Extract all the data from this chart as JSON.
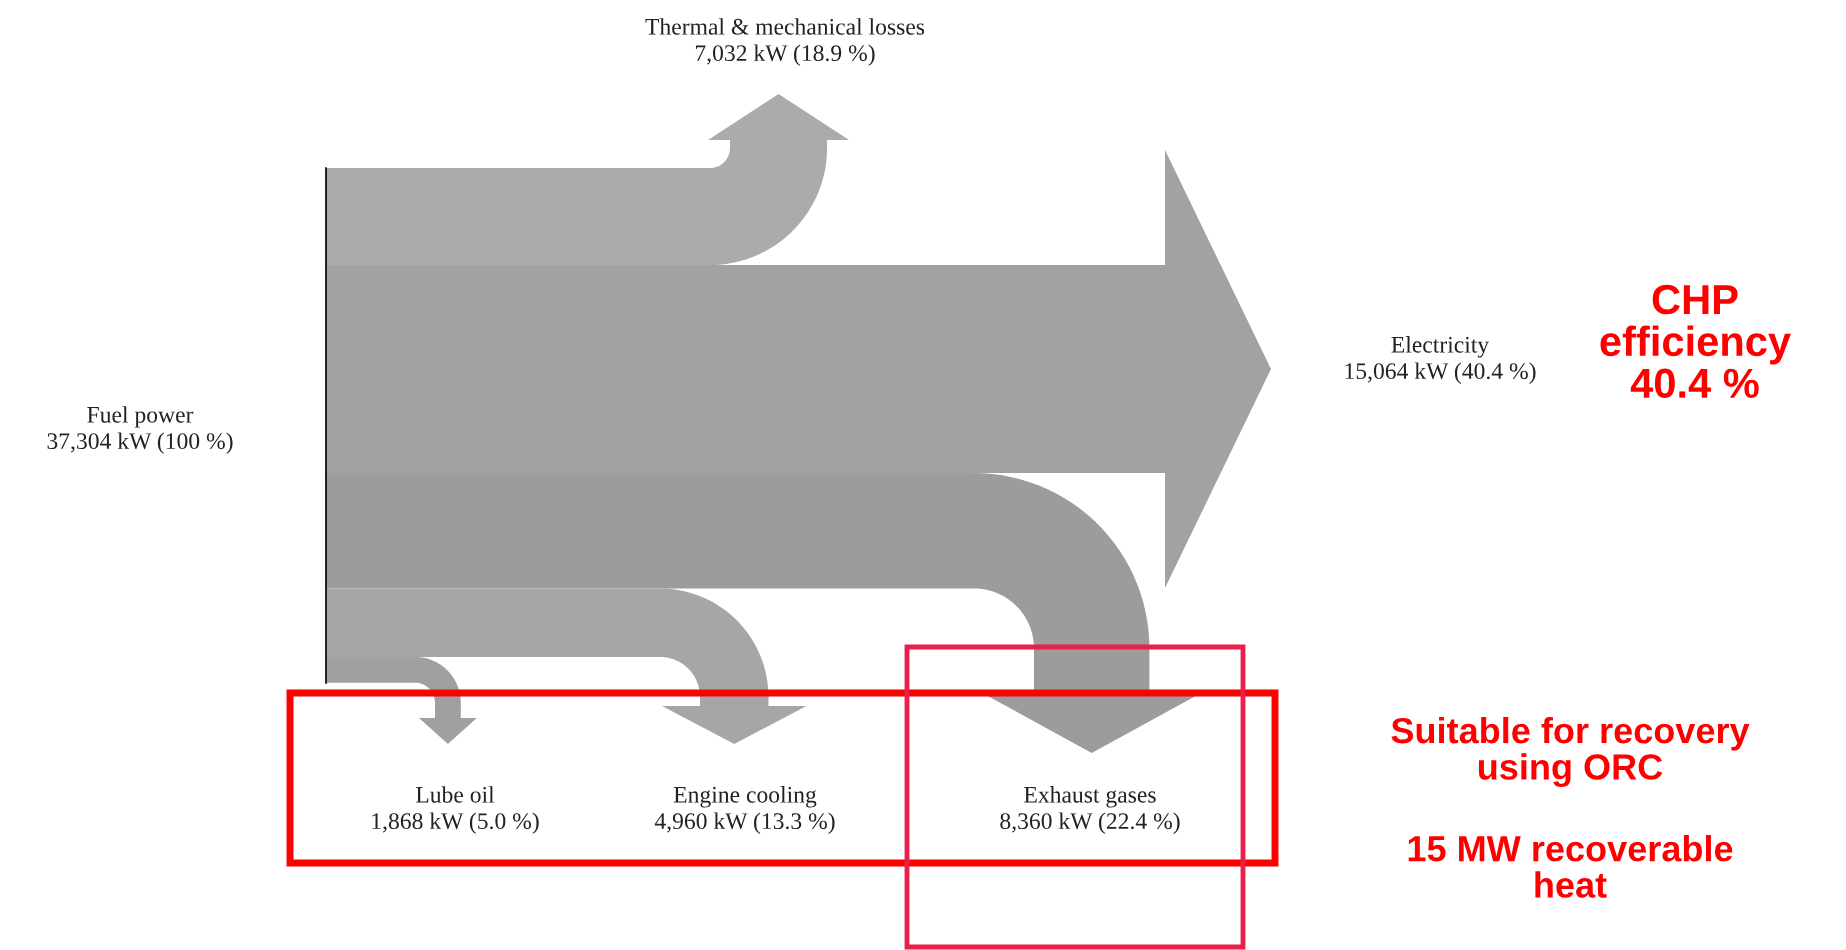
{
  "chart_data": {
    "type": "other",
    "categories": [
      "Fuel power",
      "Thermal & mechanical losses",
      "Electricity",
      "Exhaust gases",
      "Engine cooling",
      "Lube oil"
    ],
    "values": [
      37304,
      7032,
      15064,
      8360,
      4960,
      1868
    ],
    "value_labels": [
      "37,304 kW (100 %)",
      "7,032 kW (18.9 %)",
      "15,064 kW (40.4 %)",
      "8,360 kW (22.4 %)",
      "4,960 kW (13.3 %)",
      "1,868 kW (5.0 %)"
    ],
    "colors": [
      null,
      "#ababab",
      "#a2a2a2",
      "#9c9c9c",
      "#a6a6a6",
      "#a0a0a0"
    ],
    "annotations": [
      "CHP\nefficiency\n40.4 %",
      "Suitable for recovery\nusing ORC",
      "15 MW recoverable\nheat"
    ]
  }
}
